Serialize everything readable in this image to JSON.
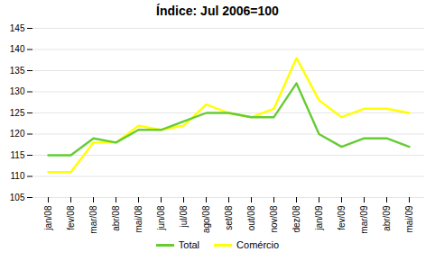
{
  "chart_data": {
    "type": "line",
    "title": "Índice: Jul 2006=100",
    "categories": [
      "jan/08",
      "fev/08",
      "mar/08",
      "abr/08",
      "mai/08",
      "jun/08",
      "jul/08",
      "ago/08",
      "set/08",
      "out/08",
      "nov/08",
      "dez/08",
      "jan/09",
      "fev/09",
      "mar/09",
      "abr/09",
      "mai/09"
    ],
    "series": [
      {
        "name": "Total",
        "color": "#66cc33",
        "values": [
          115,
          115,
          119,
          118,
          121,
          121,
          123,
          125,
          125,
          124,
          124,
          132,
          120,
          117,
          119,
          119,
          117
        ]
      },
      {
        "name": "Comércio",
        "color": "#ffff00",
        "values": [
          111,
          111,
          118,
          118,
          122,
          121,
          122,
          127,
          125,
          124,
          126,
          138,
          128,
          124,
          126,
          126,
          125
        ]
      }
    ],
    "ylim": [
      105,
      145
    ],
    "yticks": [
      105,
      110,
      115,
      120,
      125,
      130,
      135,
      140,
      145
    ],
    "grid": true,
    "legend": "bottom"
  }
}
